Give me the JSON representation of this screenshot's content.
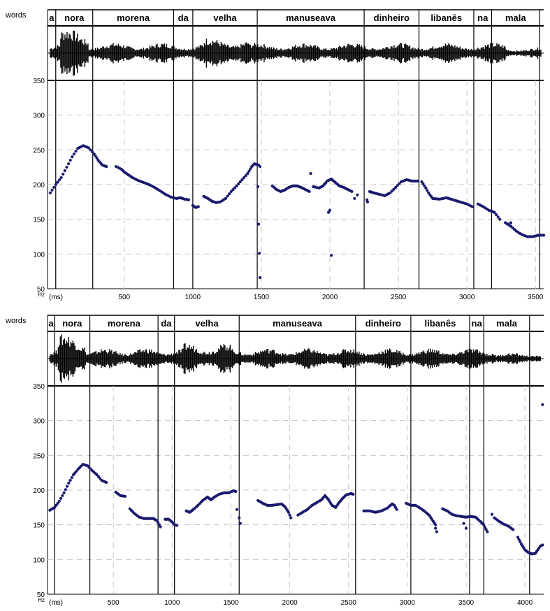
{
  "chart_data": [
    {
      "type": "scatter",
      "tier_label": "words",
      "y_unit": "Hz",
      "x_unit": "(ms)",
      "xlim": [
        -60,
        3560
      ],
      "ylim": [
        50,
        350
      ],
      "x_ticks": [
        500,
        1000,
        1500,
        2000,
        2500,
        3000,
        3500
      ],
      "y_ticks": [
        50,
        100,
        150,
        200,
        250,
        300,
        350
      ],
      "dashed_gridlines": true,
      "word_boundaries": [
        0,
        270,
        860,
        1000,
        1470,
        2250,
        2650,
        3050,
        3180,
        3530
      ],
      "words": [
        {
          "text": "a",
          "start": -60,
          "end": 0
        },
        {
          "text": "nora",
          "start": 0,
          "end": 270
        },
        {
          "text": "morena",
          "start": 270,
          "end": 860
        },
        {
          "text": "da",
          "start": 860,
          "end": 1000
        },
        {
          "text": "velha",
          "start": 1000,
          "end": 1470
        },
        {
          "text": "manuseava",
          "start": 1470,
          "end": 2250
        },
        {
          "text": "dinheiro",
          "start": 2250,
          "end": 2650
        },
        {
          "text": "libanês",
          "start": 2650,
          "end": 3050
        },
        {
          "text": "na",
          "start": 3050,
          "end": 3180
        },
        {
          "text": "mala",
          "start": 3180,
          "end": 3530
        }
      ],
      "pitch_segments": [
        [
          [
            -40,
            188
          ],
          [
            0,
            200
          ],
          [
            40,
            210
          ],
          [
            80,
            225
          ],
          [
            120,
            240
          ],
          [
            160,
            252
          ],
          [
            200,
            256
          ],
          [
            240,
            253
          ],
          [
            280,
            244
          ],
          [
            310,
            235
          ],
          [
            340,
            228
          ],
          [
            370,
            226
          ]
        ],
        [
          [
            440,
            226
          ],
          [
            480,
            222
          ],
          [
            500,
            218
          ],
          [
            530,
            214
          ],
          [
            560,
            210
          ],
          [
            600,
            206
          ],
          [
            640,
            203
          ],
          [
            680,
            200
          ],
          [
            720,
            196
          ],
          [
            760,
            191
          ],
          [
            800,
            186
          ],
          [
            840,
            182
          ],
          [
            880,
            180
          ],
          [
            910,
            181
          ],
          [
            940,
            179
          ],
          [
            970,
            178
          ]
        ],
        [
          [
            1000,
            170
          ],
          [
            1020,
            167
          ],
          [
            1040,
            168
          ]
        ],
        [
          [
            1080,
            183
          ],
          [
            1110,
            180
          ],
          [
            1140,
            176
          ],
          [
            1170,
            174
          ],
          [
            1200,
            175
          ],
          [
            1240,
            180
          ],
          [
            1280,
            190
          ],
          [
            1320,
            198
          ],
          [
            1360,
            207
          ],
          [
            1400,
            216
          ],
          [
            1430,
            226
          ],
          [
            1450,
            230
          ],
          [
            1480,
            228
          ],
          [
            1490,
            226
          ]
        ],
        [
          [
            1580,
            198
          ],
          [
            1610,
            193
          ],
          [
            1640,
            190
          ],
          [
            1670,
            192
          ],
          [
            1700,
            196
          ],
          [
            1730,
            198
          ],
          [
            1760,
            198
          ],
          [
            1790,
            196
          ],
          [
            1820,
            193
          ],
          [
            1850,
            190
          ]
        ],
        [
          [
            1880,
            197
          ],
          [
            1920,
            195
          ],
          [
            1950,
            198
          ],
          [
            1980,
            205
          ],
          [
            2010,
            208
          ],
          [
            2040,
            203
          ],
          [
            2070,
            198
          ],
          [
            2100,
            196
          ],
          [
            2130,
            193
          ],
          [
            2160,
            190
          ]
        ],
        [
          [
            2290,
            190
          ],
          [
            2320,
            188
          ],
          [
            2360,
            186
          ],
          [
            2400,
            184
          ],
          [
            2440,
            188
          ],
          [
            2480,
            196
          ],
          [
            2520,
            204
          ],
          [
            2560,
            207
          ],
          [
            2600,
            205
          ],
          [
            2640,
            205
          ]
        ],
        [
          [
            2670,
            204
          ],
          [
            2700,
            195
          ],
          [
            2720,
            188
          ],
          [
            2750,
            180
          ],
          [
            2800,
            179
          ],
          [
            2850,
            181
          ],
          [
            2900,
            178
          ],
          [
            2950,
            175
          ],
          [
            3000,
            172
          ],
          [
            3040,
            168
          ]
        ],
        [
          [
            3080,
            172
          ],
          [
            3120,
            168
          ],
          [
            3160,
            163
          ],
          [
            3200,
            160
          ],
          [
            3240,
            150
          ]
        ],
        [
          [
            3280,
            145
          ],
          [
            3320,
            140
          ],
          [
            3360,
            133
          ],
          [
            3400,
            128
          ],
          [
            3440,
            125
          ],
          [
            3480,
            125
          ],
          [
            3520,
            127
          ],
          [
            3560,
            127
          ]
        ]
      ],
      "pitch_isolated": [
        [
          1475,
          197
        ],
        [
          1480,
          143
        ],
        [
          1485,
          101
        ],
        [
          1490,
          66
        ],
        [
          1860,
          216
        ],
        [
          1990,
          160
        ],
        [
          2000,
          163
        ],
        [
          2010,
          98
        ],
        [
          2180,
          180
        ],
        [
          2200,
          185
        ],
        [
          2270,
          178
        ],
        [
          2275,
          175
        ],
        [
          3180,
          162
        ],
        [
          3200,
          160
        ],
        [
          3300,
          143
        ],
        [
          3320,
          145
        ]
      ]
    },
    {
      "type": "scatter",
      "tier_label": "words",
      "y_unit": "Hz",
      "x_unit": "(ms)",
      "xlim": [
        -60,
        4160
      ],
      "ylim": [
        50,
        350
      ],
      "x_ticks": [
        500,
        1000,
        1500,
        2000,
        2500,
        3000,
        3500,
        4000
      ],
      "y_ticks": [
        50,
        100,
        150,
        200,
        250,
        300,
        350
      ],
      "dashed_gridlines": true,
      "word_boundaries": [
        0,
        300,
        880,
        1020,
        1570,
        2560,
        3030,
        3530,
        3650,
        4040
      ],
      "words": [
        {
          "text": "a",
          "start": -60,
          "end": 0
        },
        {
          "text": "nora",
          "start": 0,
          "end": 300
        },
        {
          "text": "morena",
          "start": 300,
          "end": 880
        },
        {
          "text": "da",
          "start": 880,
          "end": 1020
        },
        {
          "text": "velha",
          "start": 1020,
          "end": 1570
        },
        {
          "text": "manuseava",
          "start": 1570,
          "end": 2560
        },
        {
          "text": "dinheiro",
          "start": 2560,
          "end": 3030
        },
        {
          "text": "libanês",
          "start": 3030,
          "end": 3530
        },
        {
          "text": "na",
          "start": 3530,
          "end": 3650
        },
        {
          "text": "mala",
          "start": 3650,
          "end": 4040
        }
      ],
      "pitch_segments": [
        [
          [
            -40,
            171
          ],
          [
            0,
            175
          ],
          [
            40,
            184
          ],
          [
            80,
            196
          ],
          [
            120,
            210
          ],
          [
            160,
            222
          ],
          [
            200,
            230
          ],
          [
            240,
            237
          ],
          [
            280,
            235
          ],
          [
            320,
            228
          ],
          [
            360,
            222
          ],
          [
            400,
            214
          ],
          [
            440,
            211
          ]
        ],
        [
          [
            520,
            197
          ],
          [
            560,
            192
          ],
          [
            600,
            191
          ]
        ],
        [
          [
            640,
            173
          ],
          [
            680,
            166
          ],
          [
            720,
            161
          ],
          [
            760,
            159
          ],
          [
            800,
            159
          ],
          [
            840,
            159
          ],
          [
            870,
            156
          ],
          [
            890,
            150
          ],
          [
            900,
            147
          ]
        ],
        [
          [
            940,
            158
          ],
          [
            970,
            158
          ],
          [
            1000,
            154
          ],
          [
            1020,
            150
          ],
          [
            1040,
            149
          ]
        ],
        [
          [
            1120,
            170
          ],
          [
            1150,
            168
          ],
          [
            1180,
            172
          ],
          [
            1220,
            178
          ],
          [
            1260,
            185
          ],
          [
            1300,
            190
          ],
          [
            1330,
            186
          ],
          [
            1360,
            190
          ],
          [
            1400,
            194
          ],
          [
            1440,
            196
          ],
          [
            1480,
            196
          ],
          [
            1520,
            199
          ],
          [
            1540,
            198
          ]
        ],
        [
          [
            1730,
            185
          ],
          [
            1770,
            181
          ],
          [
            1810,
            178
          ],
          [
            1850,
            178
          ],
          [
            1890,
            179
          ],
          [
            1930,
            180
          ],
          [
            1960,
            176
          ],
          [
            1990,
            168
          ],
          [
            2010,
            160
          ]
        ],
        [
          [
            2070,
            164
          ],
          [
            2110,
            168
          ],
          [
            2150,
            172
          ],
          [
            2190,
            178
          ],
          [
            2230,
            182
          ],
          [
            2270,
            186
          ],
          [
            2300,
            192
          ],
          [
            2330,
            186
          ],
          [
            2360,
            178
          ],
          [
            2390,
            175
          ],
          [
            2420,
            182
          ],
          [
            2450,
            188
          ],
          [
            2480,
            193
          ],
          [
            2520,
            195
          ],
          [
            2540,
            194
          ]
        ],
        [
          [
            2630,
            170
          ],
          [
            2680,
            170
          ],
          [
            2730,
            168
          ],
          [
            2780,
            170
          ],
          [
            2830,
            174
          ],
          [
            2870,
            180
          ],
          [
            2890,
            178
          ],
          [
            2910,
            172
          ]
        ],
        [
          [
            2990,
            181
          ],
          [
            3030,
            178
          ],
          [
            3070,
            178
          ],
          [
            3110,
            174
          ],
          [
            3150,
            169
          ],
          [
            3190,
            163
          ],
          [
            3220,
            155
          ],
          [
            3240,
            150
          ]
        ],
        [
          [
            3300,
            173
          ],
          [
            3340,
            170
          ],
          [
            3380,
            165
          ],
          [
            3420,
            163
          ],
          [
            3460,
            162
          ],
          [
            3500,
            161
          ],
          [
            3540,
            162
          ],
          [
            3580,
            161
          ],
          [
            3620,
            155
          ],
          [
            3650,
            150
          ],
          [
            3680,
            140
          ]
        ],
        [
          [
            3740,
            160
          ],
          [
            3780,
            155
          ],
          [
            3820,
            151
          ],
          [
            3860,
            148
          ],
          [
            3900,
            143
          ]
        ],
        [
          [
            3940,
            132
          ],
          [
            3970,
            122
          ],
          [
            4000,
            114
          ],
          [
            4030,
            110
          ],
          [
            4060,
            108
          ],
          [
            4090,
            109
          ],
          [
            4110,
            114
          ],
          [
            4130,
            119
          ],
          [
            4150,
            121
          ]
        ]
      ],
      "pitch_isolated": [
        [
          1550,
          172
        ],
        [
          1570,
          160
        ],
        [
          1580,
          152
        ],
        [
          3240,
          145
        ],
        [
          3250,
          140
        ],
        [
          3480,
          152
        ],
        [
          3500,
          145
        ],
        [
          3720,
          165
        ],
        [
          4150,
          323
        ]
      ]
    }
  ]
}
